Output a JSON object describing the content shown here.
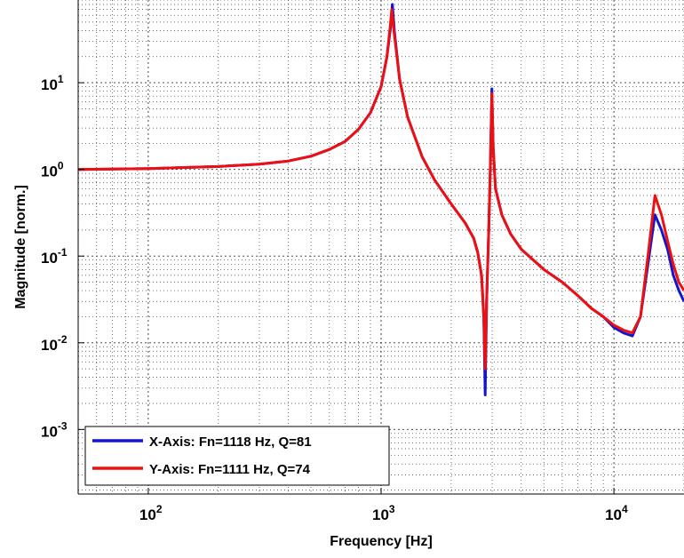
{
  "chart_data": {
    "type": "line",
    "title": "",
    "xlabel": "Frequency [Hz]",
    "ylabel": "Magnitude [norm.]",
    "xscale": "log",
    "yscale": "log",
    "xlim": [
      50,
      20000
    ],
    "ylim": [
      0.00018,
      90
    ],
    "grid": true,
    "legend_position": "bottom-left",
    "x_ticks": [
      {
        "value": 100,
        "base": "10",
        "exp": "2"
      },
      {
        "value": 1000,
        "base": "10",
        "exp": "3"
      },
      {
        "value": 10000,
        "base": "10",
        "exp": "4"
      }
    ],
    "y_ticks": [
      {
        "value": 10,
        "base": "10",
        "exp": "1"
      },
      {
        "value": 1,
        "base": "10",
        "exp": "0"
      },
      {
        "value": 0.1,
        "base": "10",
        "exp": "-1"
      },
      {
        "value": 0.01,
        "base": "10",
        "exp": "-2"
      },
      {
        "value": 0.001,
        "base": "10",
        "exp": "-3"
      }
    ],
    "series": [
      {
        "name": "X-Axis: Fn=1118 Hz, Q=81",
        "color": "#1515cc",
        "points": [
          [
            50,
            1.0
          ],
          [
            100,
            1.02
          ],
          [
            200,
            1.08
          ],
          [
            300,
            1.15
          ],
          [
            400,
            1.25
          ],
          [
            500,
            1.42
          ],
          [
            600,
            1.7
          ],
          [
            700,
            2.1
          ],
          [
            800,
            2.9
          ],
          [
            900,
            4.5
          ],
          [
            1000,
            9.0
          ],
          [
            1060,
            20
          ],
          [
            1100,
            45
          ],
          [
            1118,
            80
          ],
          [
            1140,
            40
          ],
          [
            1200,
            11
          ],
          [
            1300,
            4.0
          ],
          [
            1500,
            1.4
          ],
          [
            1700,
            0.75
          ],
          [
            2000,
            0.4
          ],
          [
            2300,
            0.24
          ],
          [
            2500,
            0.16
          ],
          [
            2600,
            0.11
          ],
          [
            2700,
            0.06
          ],
          [
            2760,
            0.02
          ],
          [
            2800,
            0.0025
          ],
          [
            2840,
            0.03
          ],
          [
            2900,
            0.2
          ],
          [
            2950,
            1.2
          ],
          [
            2990,
            8.5
          ],
          [
            3030,
            1.8
          ],
          [
            3100,
            0.6
          ],
          [
            3300,
            0.3
          ],
          [
            3600,
            0.18
          ],
          [
            4000,
            0.12
          ],
          [
            5000,
            0.07
          ],
          [
            6000,
            0.05
          ],
          [
            7000,
            0.035
          ],
          [
            8000,
            0.025
          ],
          [
            9000,
            0.02
          ],
          [
            10000,
            0.015
          ],
          [
            11000,
            0.013
          ],
          [
            12000,
            0.012
          ],
          [
            13000,
            0.02
          ],
          [
            14000,
            0.08
          ],
          [
            15000,
            0.3
          ],
          [
            16000,
            0.2
          ],
          [
            17000,
            0.12
          ],
          [
            18000,
            0.06
          ],
          [
            19000,
            0.04
          ],
          [
            20000,
            0.03
          ]
        ]
      },
      {
        "name": "Y-Axis: Fn=1111 Hz, Q=74",
        "color": "#ee1010",
        "points": [
          [
            50,
            1.0
          ],
          [
            100,
            1.02
          ],
          [
            200,
            1.08
          ],
          [
            300,
            1.15
          ],
          [
            400,
            1.25
          ],
          [
            500,
            1.42
          ],
          [
            600,
            1.7
          ],
          [
            700,
            2.1
          ],
          [
            800,
            2.9
          ],
          [
            900,
            4.5
          ],
          [
            1000,
            9.0
          ],
          [
            1060,
            20
          ],
          [
            1095,
            45
          ],
          [
            1111,
            70
          ],
          [
            1135,
            40
          ],
          [
            1200,
            11
          ],
          [
            1300,
            4.0
          ],
          [
            1500,
            1.4
          ],
          [
            1700,
            0.75
          ],
          [
            2000,
            0.4
          ],
          [
            2300,
            0.24
          ],
          [
            2500,
            0.16
          ],
          [
            2600,
            0.11
          ],
          [
            2700,
            0.06
          ],
          [
            2760,
            0.02
          ],
          [
            2800,
            0.005
          ],
          [
            2840,
            0.03
          ],
          [
            2900,
            0.2
          ],
          [
            2950,
            1.2
          ],
          [
            2990,
            7.5
          ],
          [
            3030,
            1.8
          ],
          [
            3100,
            0.6
          ],
          [
            3300,
            0.3
          ],
          [
            3600,
            0.18
          ],
          [
            4000,
            0.12
          ],
          [
            5000,
            0.07
          ],
          [
            6000,
            0.05
          ],
          [
            7000,
            0.035
          ],
          [
            8000,
            0.025
          ],
          [
            9000,
            0.02
          ],
          [
            10000,
            0.016
          ],
          [
            11000,
            0.014
          ],
          [
            12000,
            0.013
          ],
          [
            13000,
            0.02
          ],
          [
            14000,
            0.1
          ],
          [
            15000,
            0.5
          ],
          [
            16000,
            0.3
          ],
          [
            17000,
            0.15
          ],
          [
            18000,
            0.08
          ],
          [
            19000,
            0.05
          ],
          [
            20000,
            0.04
          ]
        ]
      }
    ]
  }
}
